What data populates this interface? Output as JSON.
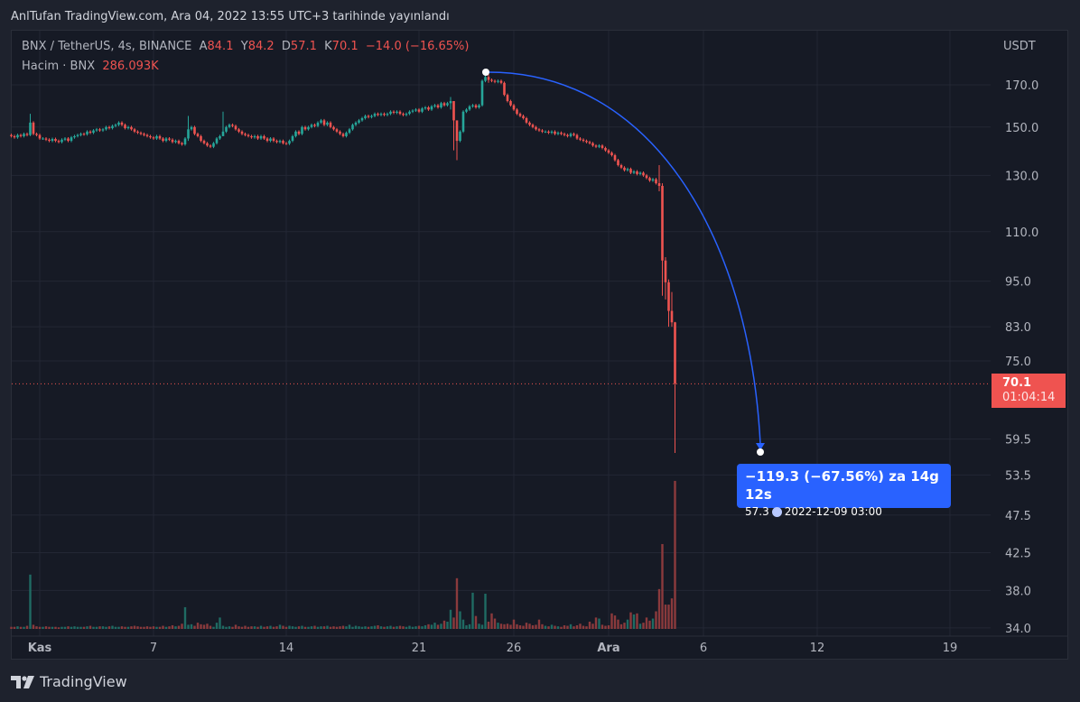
{
  "published": "AnlTufan TradingView.com, Ara 04, 2022 13:55 UTC+3 tarihinde yayınlandı",
  "legend": {
    "symbol": "BNX / TetherUS, 4s, BINANCE",
    "open_label": "A",
    "open": "84.1",
    "high_label": "Y",
    "high": "84.2",
    "low_label": "D",
    "low": "57.1",
    "close_label": "K",
    "close": "70.1",
    "change": "−14.0 (−16.65%)",
    "volume_label": "Hacim · BNX",
    "volume": "286.093K"
  },
  "last_price": {
    "price": "70.1",
    "countdown": "01:04:14",
    "color": "#ef5350"
  },
  "measure": {
    "line1": "−119.3 (−67.56%) za 14g 12s",
    "price": "57.3",
    "datetime": "2022-12-09  03:00",
    "color": "#2962ff"
  },
  "branding": {
    "name": "TradingView"
  },
  "colors": {
    "up": "#26a69a",
    "down": "#ef5350",
    "background": "#161a25"
  },
  "chart_data": {
    "type": "candlestick",
    "interval": "4s",
    "yscale": "log",
    "currency": "USDT",
    "grid": true,
    "yticks": [
      "170.0",
      "150.0",
      "130.0",
      "110.0",
      "95.0",
      "83.0",
      "75.0",
      "59.5",
      "53.5",
      "47.5",
      "42.5",
      "38.0",
      "34.0"
    ],
    "xticks": [
      {
        "label": "Kas",
        "date": "2022-11-01"
      },
      {
        "label": "7",
        "date": "2022-11-07"
      },
      {
        "label": "14",
        "date": "2022-11-14"
      },
      {
        "label": "21",
        "date": "2022-11-21"
      },
      {
        "label": "26",
        "date": "2022-11-26"
      },
      {
        "label": "Ara",
        "date": "2022-12-01"
      },
      {
        "label": "6",
        "date": "2022-12-06"
      },
      {
        "label": "12",
        "date": "2022-12-12"
      },
      {
        "label": "19",
        "date": "2022-12-19"
      }
    ],
    "first_open": 146.5,
    "close": [
      146,
      145.5,
      146.5,
      146,
      147,
      146.5,
      152,
      147,
      146.5,
      145,
      145,
      144.5,
      144,
      144.8,
      144,
      143.5,
      144.5,
      145,
      144,
      145.5,
      146,
      146.5,
      147,
      146.8,
      148,
      147.5,
      148.5,
      149,
      148.5,
      149,
      150,
      149.5,
      150.5,
      151,
      152,
      151,
      149.5,
      150,
      149,
      148,
      147.5,
      147,
      146.5,
      146,
      145.5,
      145,
      146,
      145,
      144,
      145,
      144.5,
      143.5,
      144,
      143,
      142.5,
      145,
      149,
      150,
      147,
      146,
      144,
      143,
      142,
      141.5,
      143,
      145,
      146,
      148,
      150,
      151,
      150.5,
      149,
      148,
      147,
      146.5,
      146,
      145.5,
      146,
      145,
      146,
      145,
      144,
      145,
      144,
      143.5,
      144,
      143,
      142.8,
      144,
      146,
      148,
      147,
      150,
      149,
      150,
      151,
      150.5,
      152,
      153,
      151,
      152,
      150,
      149,
      148,
      147,
      146,
      147.5,
      149,
      151,
      152,
      153,
      154,
      155,
      154.5,
      155,
      156,
      155.5,
      156,
      155.5,
      156,
      157,
      156.5,
      157,
      156,
      155.5,
      156,
      157,
      157.5,
      158,
      157,
      158.5,
      159,
      158,
      159.5,
      160,
      159,
      161,
      160,
      161,
      162,
      153,
      144,
      148,
      157,
      158,
      159.5,
      160,
      159,
      160,
      172,
      174,
      172.5,
      172,
      171.5,
      172,
      171,
      165,
      162,
      160,
      158,
      156,
      155,
      154,
      152,
      151,
      150,
      149,
      148.5,
      148,
      148,
      147.5,
      148,
      147,
      147.5,
      147,
      146.5,
      146,
      147,
      146.5,
      145,
      144.5,
      144,
      143.5,
      143,
      142,
      141.5,
      142,
      141,
      140,
      139,
      138,
      136,
      134,
      133,
      132,
      132.5,
      131,
      131.5,
      130.5,
      131,
      130,
      129,
      128,
      128.5,
      127,
      126,
      101,
      94.7,
      87,
      84.1,
      70.1
    ],
    "high_low": {
      "6": [
        156,
        146
      ],
      "56": [
        155,
        144
      ],
      "67": [
        157,
        147
      ],
      "139": [
        164,
        158
      ],
      "140": [
        162,
        140
      ],
      "141": [
        150,
        136
      ],
      "151": [
        176.5,
        171
      ],
      "205": [
        134,
        124
      ],
      "206": [
        127,
        91
      ],
      "207": [
        102,
        90
      ],
      "208": [
        95.5,
        83
      ],
      "209": [
        92,
        83
      ],
      "210": [
        84.2,
        57.1
      ]
    },
    "volume_k": [
      4,
      4,
      5,
      4,
      4,
      6,
      105,
      8,
      5,
      4,
      4,
      5,
      4,
      4,
      4,
      3,
      4,
      4,
      5,
      4,
      5,
      4,
      4,
      4,
      5,
      6,
      4,
      4,
      5,
      5,
      4,
      5,
      6,
      4,
      4,
      5,
      4,
      4,
      5,
      6,
      5,
      4,
      4,
      5,
      4,
      5,
      4,
      4,
      6,
      4,
      5,
      7,
      5,
      6,
      10,
      42,
      8,
      9,
      6,
      12,
      9,
      8,
      10,
      6,
      4,
      12,
      22,
      6,
      4,
      5,
      4,
      8,
      5,
      4,
      6,
      4,
      5,
      5,
      4,
      6,
      4,
      5,
      6,
      4,
      5,
      8,
      6,
      4,
      6,
      5,
      4,
      5,
      6,
      4,
      4,
      5,
      6,
      4,
      5,
      5,
      6,
      4,
      5,
      4,
      5,
      6,
      5,
      8,
      4,
      6,
      5,
      4,
      5,
      4,
      5,
      6,
      7,
      5,
      4,
      5,
      6,
      4,
      5,
      6,
      5,
      4,
      6,
      4,
      5,
      6,
      5,
      7,
      9,
      8,
      12,
      8,
      10,
      16,
      14,
      37,
      22,
      98,
      34,
      18,
      7,
      9,
      70,
      25,
      10,
      8,
      68,
      14,
      30,
      20,
      12,
      10,
      9,
      10,
      8,
      18,
      9,
      7,
      6,
      12,
      10,
      7,
      8,
      18,
      9,
      6,
      5,
      8,
      6,
      5,
      4,
      7,
      6,
      9,
      5,
      7,
      10,
      6,
      5,
      14,
      10,
      22,
      20,
      8,
      6,
      7,
      30,
      26,
      18,
      9,
      12,
      18,
      32,
      28,
      30,
      10,
      12,
      22,
      16,
      20,
      34,
      77,
      164,
      47,
      47,
      59,
      286.093
    ]
  }
}
